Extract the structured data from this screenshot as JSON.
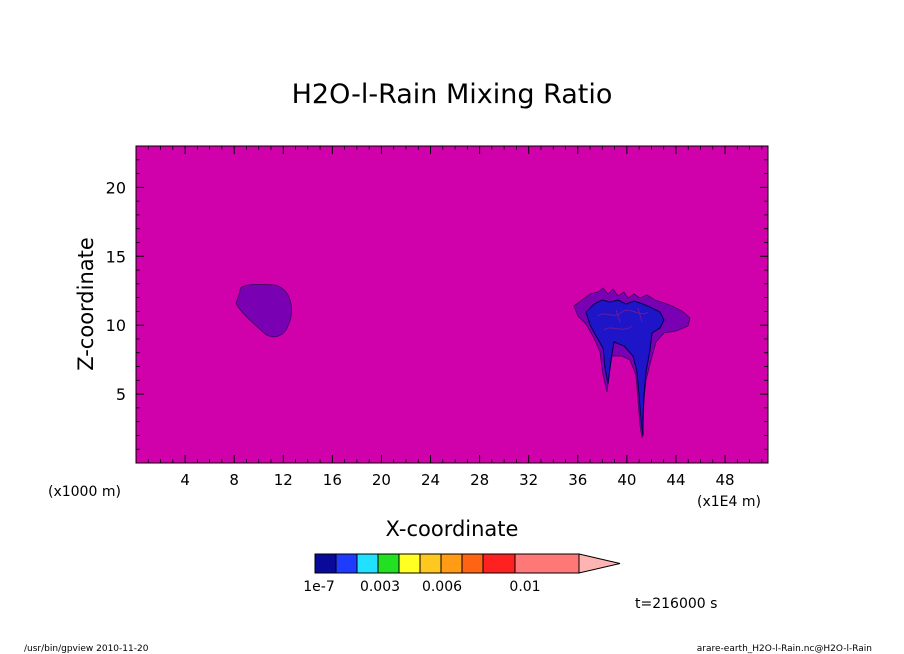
{
  "chart_data": {
    "type": "heatmap",
    "title": "H2O-l-Rain Mixing Ratio",
    "xlabel": "X-coordinate",
    "ylabel": "Z-coordinate",
    "x_unit_left": "(x1000 m)",
    "x_unit_right": "(x1E4 m)",
    "xlim": [
      0,
      51.5
    ],
    "ylim": [
      0,
      23
    ],
    "x_ticks": [
      4,
      8,
      12,
      16,
      20,
      24,
      28,
      32,
      36,
      40,
      44,
      48
    ],
    "y_ticks": [
      5,
      10,
      15,
      20
    ],
    "background_level": "below 1e-7",
    "features": [
      {
        "name": "",
        "center_x": 11.0,
        "center_z": 11.0,
        "level": "low"
      },
      {
        "name": "",
        "center_x": 41.0,
        "center_z": 9.5,
        "level": "1e-7 to 0.003"
      }
    ],
    "colorbar": {
      "tick_labels": [
        "1e-7",
        "0.003",
        "0.006",
        "0.01"
      ],
      "colors": [
        "#0a0a9a",
        "#1e3cff",
        "#22e0ff",
        "#22e022",
        "#ffff22",
        "#ffc81e",
        "#ff9b14",
        "#ff6414",
        "#ff2020",
        "#ff7878",
        "#ffb4b4"
      ]
    },
    "time_label": "t=216000 s"
  },
  "colors": {
    "plot_background": "#d000aa",
    "low_region": "#7a00b4",
    "core_region": "#1e14c8"
  },
  "footer": {
    "left": "/usr/bin/gpview  2010-11-20",
    "right": "arare-earth_H2O-l-Rain.nc@H2O-l-Rain"
  }
}
